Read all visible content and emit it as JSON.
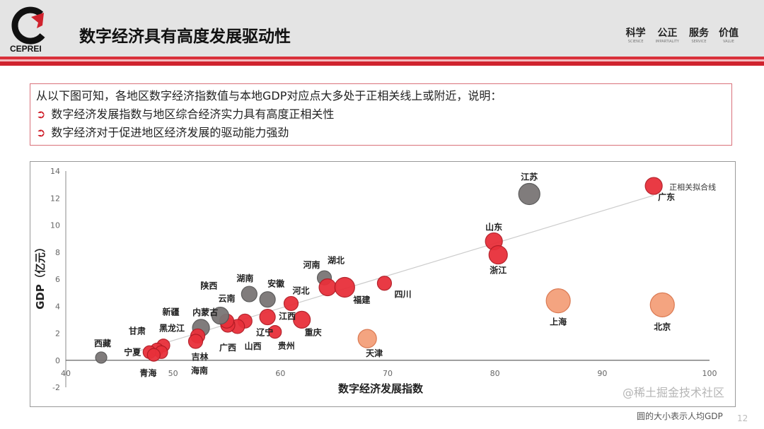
{
  "header": {
    "logo_text": "CEPREI",
    "title": "数字经济具有高度发展驱动性",
    "values": [
      {
        "zh": "科学",
        "en": "SCIENCE"
      },
      {
        "zh": "公正",
        "en": "IMPARTIALITY"
      },
      {
        "zh": "服务",
        "en": "SERVICE"
      },
      {
        "zh": "价值",
        "en": "VALUE"
      }
    ]
  },
  "summary": {
    "lead": "从以下图可知，各地区数字经济指数值与本地GDP对应点大多处于正相关线上或附近，说明：",
    "bullets": [
      "数字经济发展指数与地区综合经济实力具有高度正相关性",
      "数字经济对于促进地区经济发展的驱动能力强劲"
    ]
  },
  "chart_data": {
    "type": "scatter",
    "xlabel": "数字经济发展指数",
    "ylabel": "GDP（亿元）",
    "xlim": [
      40,
      100
    ],
    "ylim": [
      -2,
      14
    ],
    "xticks": [
      40,
      50,
      60,
      70,
      80,
      90,
      100
    ],
    "yticks": [
      -2,
      0,
      2,
      4,
      6,
      8,
      10,
      12,
      14
    ],
    "trendline": {
      "label": "正相关拟合线",
      "from": [
        46.4,
        0.6
      ],
      "to": [
        94.8,
        12.2
      ],
      "color": "#cccccc"
    },
    "colors": {
      "red": "#e8303a",
      "gray": "#7a7575",
      "orange": "#f4a07a"
    },
    "points": [
      {
        "name": "江苏",
        "x": 83.2,
        "y": 12.3,
        "size": 15,
        "color": "gray"
      },
      {
        "name": "广东",
        "x": 94.8,
        "y": 12.9,
        "size": 12,
        "color": "red"
      },
      {
        "name": "山东",
        "x": 79.9,
        "y": 8.8,
        "size": 12,
        "color": "red"
      },
      {
        "name": "浙江",
        "x": 80.3,
        "y": 7.8,
        "size": 13,
        "color": "red"
      },
      {
        "name": "上海",
        "x": 85.9,
        "y": 4.4,
        "size": 17,
        "color": "orange"
      },
      {
        "name": "北京",
        "x": 95.6,
        "y": 4.1,
        "size": 17,
        "color": "orange"
      },
      {
        "name": "天津",
        "x": 68.1,
        "y": 1.6,
        "size": 13,
        "color": "orange"
      },
      {
        "name": "四川",
        "x": 69.7,
        "y": 5.7,
        "size": 10,
        "color": "red"
      },
      {
        "name": "河南",
        "x": 64.1,
        "y": 6.1,
        "size": 10,
        "color": "gray"
      },
      {
        "name": "湖北",
        "x": 64.4,
        "y": 5.4,
        "size": 12,
        "color": "red"
      },
      {
        "name": "福建",
        "x": 66.0,
        "y": 5.4,
        "size": 14,
        "color": "red"
      },
      {
        "name": "重庆",
        "x": 62.0,
        "y": 3.0,
        "size": 12,
        "color": "red"
      },
      {
        "name": "河北",
        "x": 61.0,
        "y": 4.2,
        "size": 10,
        "color": "red"
      },
      {
        "name": "贵州",
        "x": 59.5,
        "y": 2.1,
        "size": 9,
        "color": "red"
      },
      {
        "name": "江西",
        "x": 58.8,
        "y": 3.2,
        "size": 11,
        "color": "red"
      },
      {
        "name": "安徽",
        "x": 58.8,
        "y": 4.5,
        "size": 11,
        "color": "gray"
      },
      {
        "name": "湖南",
        "x": 57.1,
        "y": 4.9,
        "size": 11,
        "color": "gray"
      },
      {
        "name": "辽宁",
        "x": 56.7,
        "y": 2.9,
        "size": 10,
        "color": "red"
      },
      {
        "name": "山西",
        "x": 56.0,
        "y": 2.5,
        "size": 10,
        "color": "red"
      },
      {
        "name": "广西",
        "x": 55.1,
        "y": 2.6,
        "size": 10,
        "color": "red"
      },
      {
        "name": "云南",
        "x": 55.0,
        "y": 2.9,
        "size": 10,
        "color": "red"
      },
      {
        "name": "陕西",
        "x": 54.4,
        "y": 3.3,
        "size": 12,
        "color": "gray"
      },
      {
        "name": "内蒙古",
        "x": 52.6,
        "y": 2.4,
        "size": 12,
        "color": "gray"
      },
      {
        "name": "新疆",
        "x": 52.3,
        "y": 1.8,
        "size": 10,
        "color": "red"
      },
      {
        "name": "吉林",
        "x": 52.1,
        "y": 1.4,
        "size": 10,
        "color": "red"
      },
      {
        "name": "黑龙江",
        "x": 49.1,
        "y": 1.1,
        "size": 9,
        "color": "red"
      },
      {
        "name": "甘肃",
        "x": 48.5,
        "y": 0.8,
        "size": 9,
        "color": "red"
      },
      {
        "name": "海南",
        "x": 48.9,
        "y": 0.6,
        "size": 9,
        "color": "red"
      },
      {
        "name": "宁夏",
        "x": 47.8,
        "y": 0.6,
        "size": 9,
        "color": "red"
      },
      {
        "name": "青海",
        "x": 48.2,
        "y": 0.4,
        "size": 9,
        "color": "red"
      },
      {
        "name": "西藏",
        "x": 43.3,
        "y": 0.2,
        "size": 8,
        "color": "gray"
      }
    ]
  },
  "footnote": "圆的大小表示人均GDP",
  "watermark": "@稀土掘金技术社区",
  "page_number": "12"
}
